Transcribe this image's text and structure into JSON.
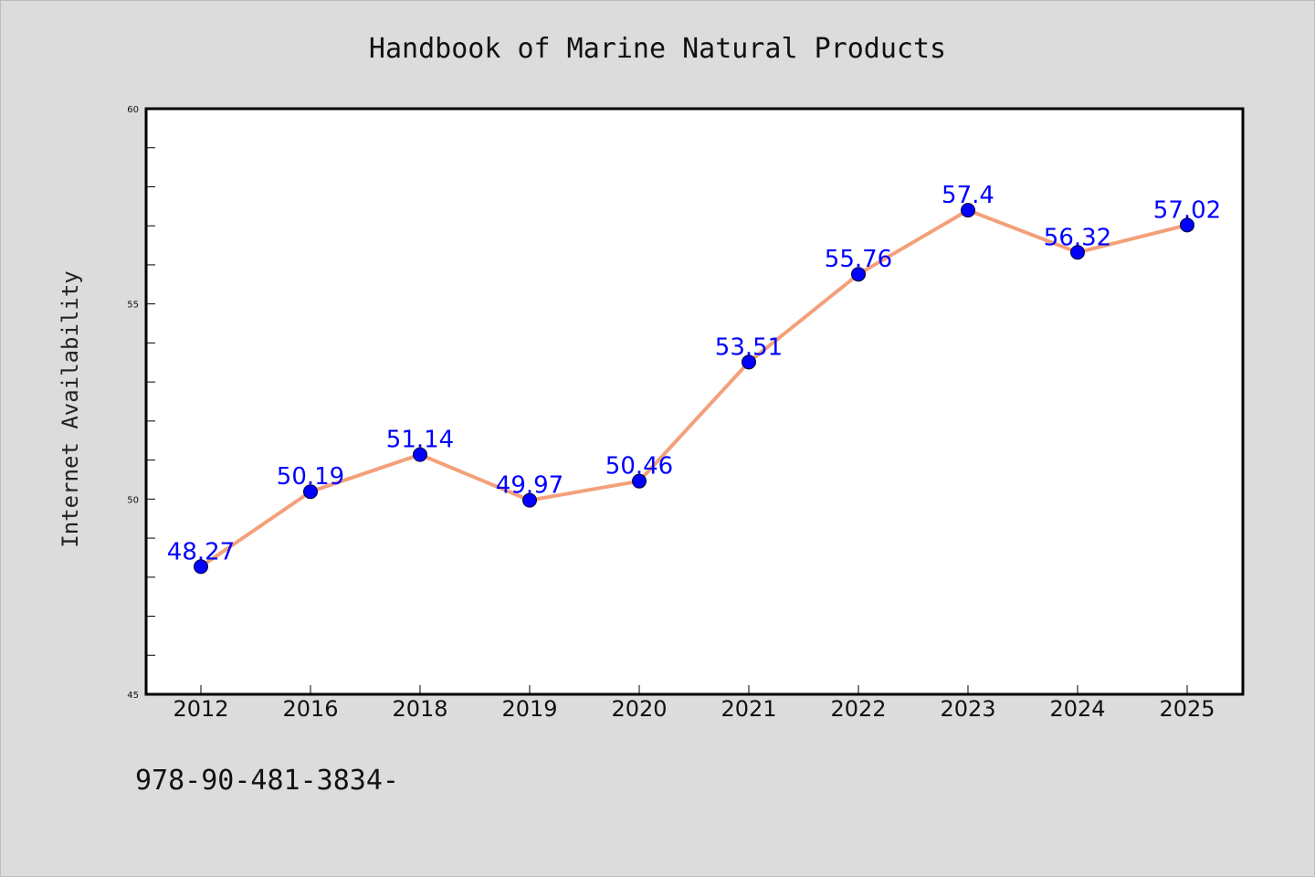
{
  "chart_data": {
    "type": "line",
    "title": "Handbook of Marine Natural Products",
    "xlabel": "",
    "ylabel": "Internet Availability",
    "categories": [
      "2012",
      "2016",
      "2018",
      "2019",
      "2020",
      "2021",
      "2022",
      "2023",
      "2024",
      "2025"
    ],
    "series": [
      {
        "values": [
          48.27,
          50.19,
          51.14,
          49.97,
          50.46,
          53.51,
          55.76,
          57.4,
          56.32,
          57.02
        ],
        "data_labels": [
          "48.27",
          "50.19",
          "51.14",
          "49.97",
          "50.46",
          "53.51",
          "55.76",
          "57.4",
          "56.32",
          "57.02"
        ],
        "line_color": "#f4a07a",
        "marker_color": "#0000ff"
      }
    ],
    "ylim": [
      45,
      60
    ],
    "yticks": [
      "45",
      "50",
      "55",
      "60"
    ],
    "grid": false,
    "legend": "none"
  },
  "footer_text": "978-90-481-3834-",
  "colors": {
    "background": "#dcdcdc",
    "plot_background": "#ffffff",
    "label_color": "#0000ff"
  }
}
